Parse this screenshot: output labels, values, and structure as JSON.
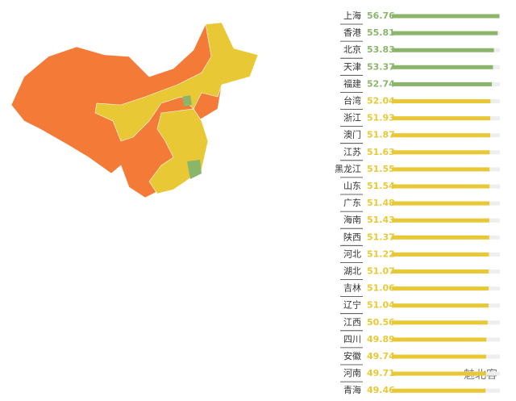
{
  "chart_data": {
    "type": "bar",
    "orientation": "horizontal",
    "categories": [
      "上海",
      "香港",
      "北京",
      "天津",
      "福建",
      "台湾",
      "浙江",
      "澳门",
      "江苏",
      "黑龙江",
      "山东",
      "广东",
      "海南",
      "陕西",
      "河北",
      "湖北",
      "吉林",
      "辽宁",
      "江西",
      "四川",
      "安徽",
      "河南",
      "青海"
    ],
    "values": [
      56.76,
      55.81,
      53.83,
      53.37,
      52.74,
      52.04,
      51.93,
      51.87,
      51.63,
      51.55,
      51.54,
      51.48,
      51.43,
      51.37,
      51.22,
      51.07,
      51.06,
      51.04,
      50.56,
      49.89,
      49.74,
      49.71,
      49.46
    ],
    "colors": [
      "#8ab56a",
      "#8ab56a",
      "#8ab56a",
      "#8ab56a",
      "#8ab56a",
      "#e8c935",
      "#e8c935",
      "#e8c935",
      "#e8c935",
      "#e8c935",
      "#e8c935",
      "#e8c935",
      "#e8c935",
      "#e8c935",
      "#e8c935",
      "#e8c935",
      "#e8c935",
      "#e8c935",
      "#e8c935",
      "#e8c935",
      "#e8c935",
      "#e8c935",
      "#e8c935"
    ],
    "xlim": [
      0,
      57
    ],
    "watermark": "魅北客"
  }
}
